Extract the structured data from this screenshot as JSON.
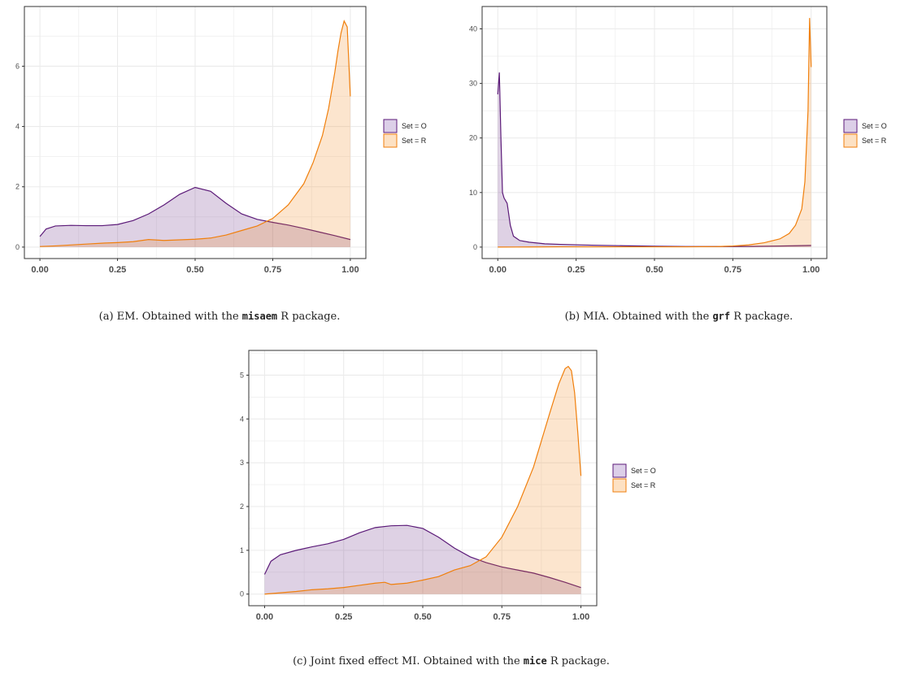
{
  "palette": {
    "O": {
      "line": "#5b1a78",
      "fill": "#dccfe8"
    },
    "R": {
      "line": "#f07f0c",
      "fill": "#fde1c3"
    },
    "grid": "#ebebeb",
    "axis": "#333333"
  },
  "chart_data": [
    {
      "id": "a",
      "type": "area",
      "xlim": [
        0,
        1
      ],
      "ylim": [
        0,
        7.6
      ],
      "xticks": [
        "0.00",
        "0.25",
        "0.50",
        "0.75",
        "1.00"
      ],
      "yticks": [
        0,
        2,
        4,
        6
      ],
      "legend": [
        "Set = O",
        "Set = R"
      ],
      "legend_position": "right",
      "grid": true,
      "caption": {
        "prefix": "(a) EM. Obtained with the",
        "code": "misaem",
        "suffix": "R package."
      },
      "series": [
        {
          "key": "O",
          "name": "Set = O",
          "x": [
            0.0,
            0.02,
            0.05,
            0.1,
            0.15,
            0.2,
            0.25,
            0.3,
            0.35,
            0.4,
            0.45,
            0.5,
            0.55,
            0.6,
            0.65,
            0.7,
            0.75,
            0.8,
            0.85,
            0.9,
            0.95,
            1.0
          ],
          "y": [
            0.35,
            0.6,
            0.7,
            0.72,
            0.71,
            0.71,
            0.75,
            0.88,
            1.1,
            1.4,
            1.75,
            1.98,
            1.85,
            1.45,
            1.1,
            0.92,
            0.82,
            0.73,
            0.62,
            0.5,
            0.38,
            0.25
          ]
        },
        {
          "key": "R",
          "name": "Set = R",
          "x": [
            0.0,
            0.05,
            0.1,
            0.15,
            0.2,
            0.25,
            0.3,
            0.35,
            0.4,
            0.45,
            0.5,
            0.55,
            0.6,
            0.65,
            0.7,
            0.75,
            0.8,
            0.85,
            0.88,
            0.91,
            0.93,
            0.95,
            0.96,
            0.97,
            0.98,
            0.99,
            1.0
          ],
          "y": [
            0.02,
            0.04,
            0.07,
            0.1,
            0.13,
            0.15,
            0.18,
            0.25,
            0.22,
            0.24,
            0.26,
            0.3,
            0.4,
            0.55,
            0.7,
            0.95,
            1.4,
            2.1,
            2.8,
            3.7,
            4.6,
            5.8,
            6.5,
            7.1,
            7.5,
            7.3,
            5.0
          ]
        }
      ]
    },
    {
      "id": "b",
      "type": "area",
      "xlim": [
        0,
        1
      ],
      "ylim": [
        0,
        42
      ],
      "xticks": [
        "0.00",
        "0.25",
        "0.50",
        "0.75",
        "1.00"
      ],
      "yticks": [
        0,
        10,
        20,
        30,
        40
      ],
      "legend": [
        "Set = O",
        "Set = R"
      ],
      "legend_position": "right",
      "grid": true,
      "caption": {
        "prefix": "(b) MIA. Obtained with the",
        "code": "grf",
        "suffix": "R package."
      },
      "series": [
        {
          "key": "O",
          "name": "Set = O",
          "x": [
            0.0,
            0.005,
            0.01,
            0.015,
            0.02,
            0.03,
            0.04,
            0.05,
            0.07,
            0.1,
            0.15,
            0.2,
            0.3,
            0.4,
            0.5,
            0.6,
            0.7,
            0.8,
            0.9,
            0.95,
            1.0
          ],
          "y": [
            28,
            32,
            20,
            10,
            9,
            8,
            4,
            2,
            1.2,
            0.9,
            0.6,
            0.5,
            0.35,
            0.25,
            0.15,
            0.1,
            0.1,
            0.12,
            0.2,
            0.25,
            0.3
          ]
        },
        {
          "key": "R",
          "name": "Set = R",
          "x": [
            0.0,
            0.1,
            0.2,
            0.3,
            0.4,
            0.5,
            0.6,
            0.7,
            0.75,
            0.8,
            0.85,
            0.9,
            0.93,
            0.95,
            0.97,
            0.98,
            0.99,
            0.995,
            1.0
          ],
          "y": [
            0.0,
            0.02,
            0.05,
            0.05,
            0.05,
            0.05,
            0.05,
            0.1,
            0.2,
            0.4,
            0.8,
            1.5,
            2.5,
            4,
            7,
            12,
            25,
            42,
            33
          ]
        }
      ]
    },
    {
      "id": "c",
      "type": "area",
      "xlim": [
        0,
        1
      ],
      "ylim": [
        0,
        5.3
      ],
      "xticks": [
        "0.00",
        "0.25",
        "0.50",
        "0.75",
        "1.00"
      ],
      "yticks": [
        0,
        1,
        2,
        3,
        4,
        5
      ],
      "legend": [
        "Set = O",
        "Set = R"
      ],
      "legend_position": "right",
      "grid": true,
      "caption": {
        "prefix": "(c) Joint fixed effect MI. Obtained with the",
        "code": "mice",
        "suffix": "R package."
      },
      "series": [
        {
          "key": "O",
          "name": "Set = O",
          "x": [
            0.0,
            0.02,
            0.05,
            0.1,
            0.15,
            0.2,
            0.25,
            0.3,
            0.35,
            0.4,
            0.45,
            0.5,
            0.55,
            0.6,
            0.65,
            0.7,
            0.75,
            0.8,
            0.85,
            0.9,
            0.95,
            1.0
          ],
          "y": [
            0.45,
            0.75,
            0.9,
            1.0,
            1.08,
            1.15,
            1.25,
            1.4,
            1.52,
            1.56,
            1.57,
            1.5,
            1.3,
            1.05,
            0.85,
            0.72,
            0.62,
            0.55,
            0.48,
            0.38,
            0.27,
            0.15
          ]
        },
        {
          "key": "R",
          "name": "Set = R",
          "x": [
            0.0,
            0.05,
            0.1,
            0.15,
            0.2,
            0.25,
            0.3,
            0.35,
            0.38,
            0.4,
            0.45,
            0.5,
            0.55,
            0.6,
            0.65,
            0.7,
            0.75,
            0.8,
            0.85,
            0.9,
            0.93,
            0.95,
            0.96,
            0.97,
            0.98,
            0.99,
            1.0
          ],
          "y": [
            0.0,
            0.03,
            0.06,
            0.1,
            0.12,
            0.15,
            0.2,
            0.25,
            0.27,
            0.22,
            0.25,
            0.32,
            0.4,
            0.55,
            0.65,
            0.85,
            1.3,
            2.0,
            2.9,
            4.1,
            4.8,
            5.15,
            5.2,
            5.1,
            4.6,
            3.7,
            2.7
          ]
        }
      ]
    }
  ]
}
